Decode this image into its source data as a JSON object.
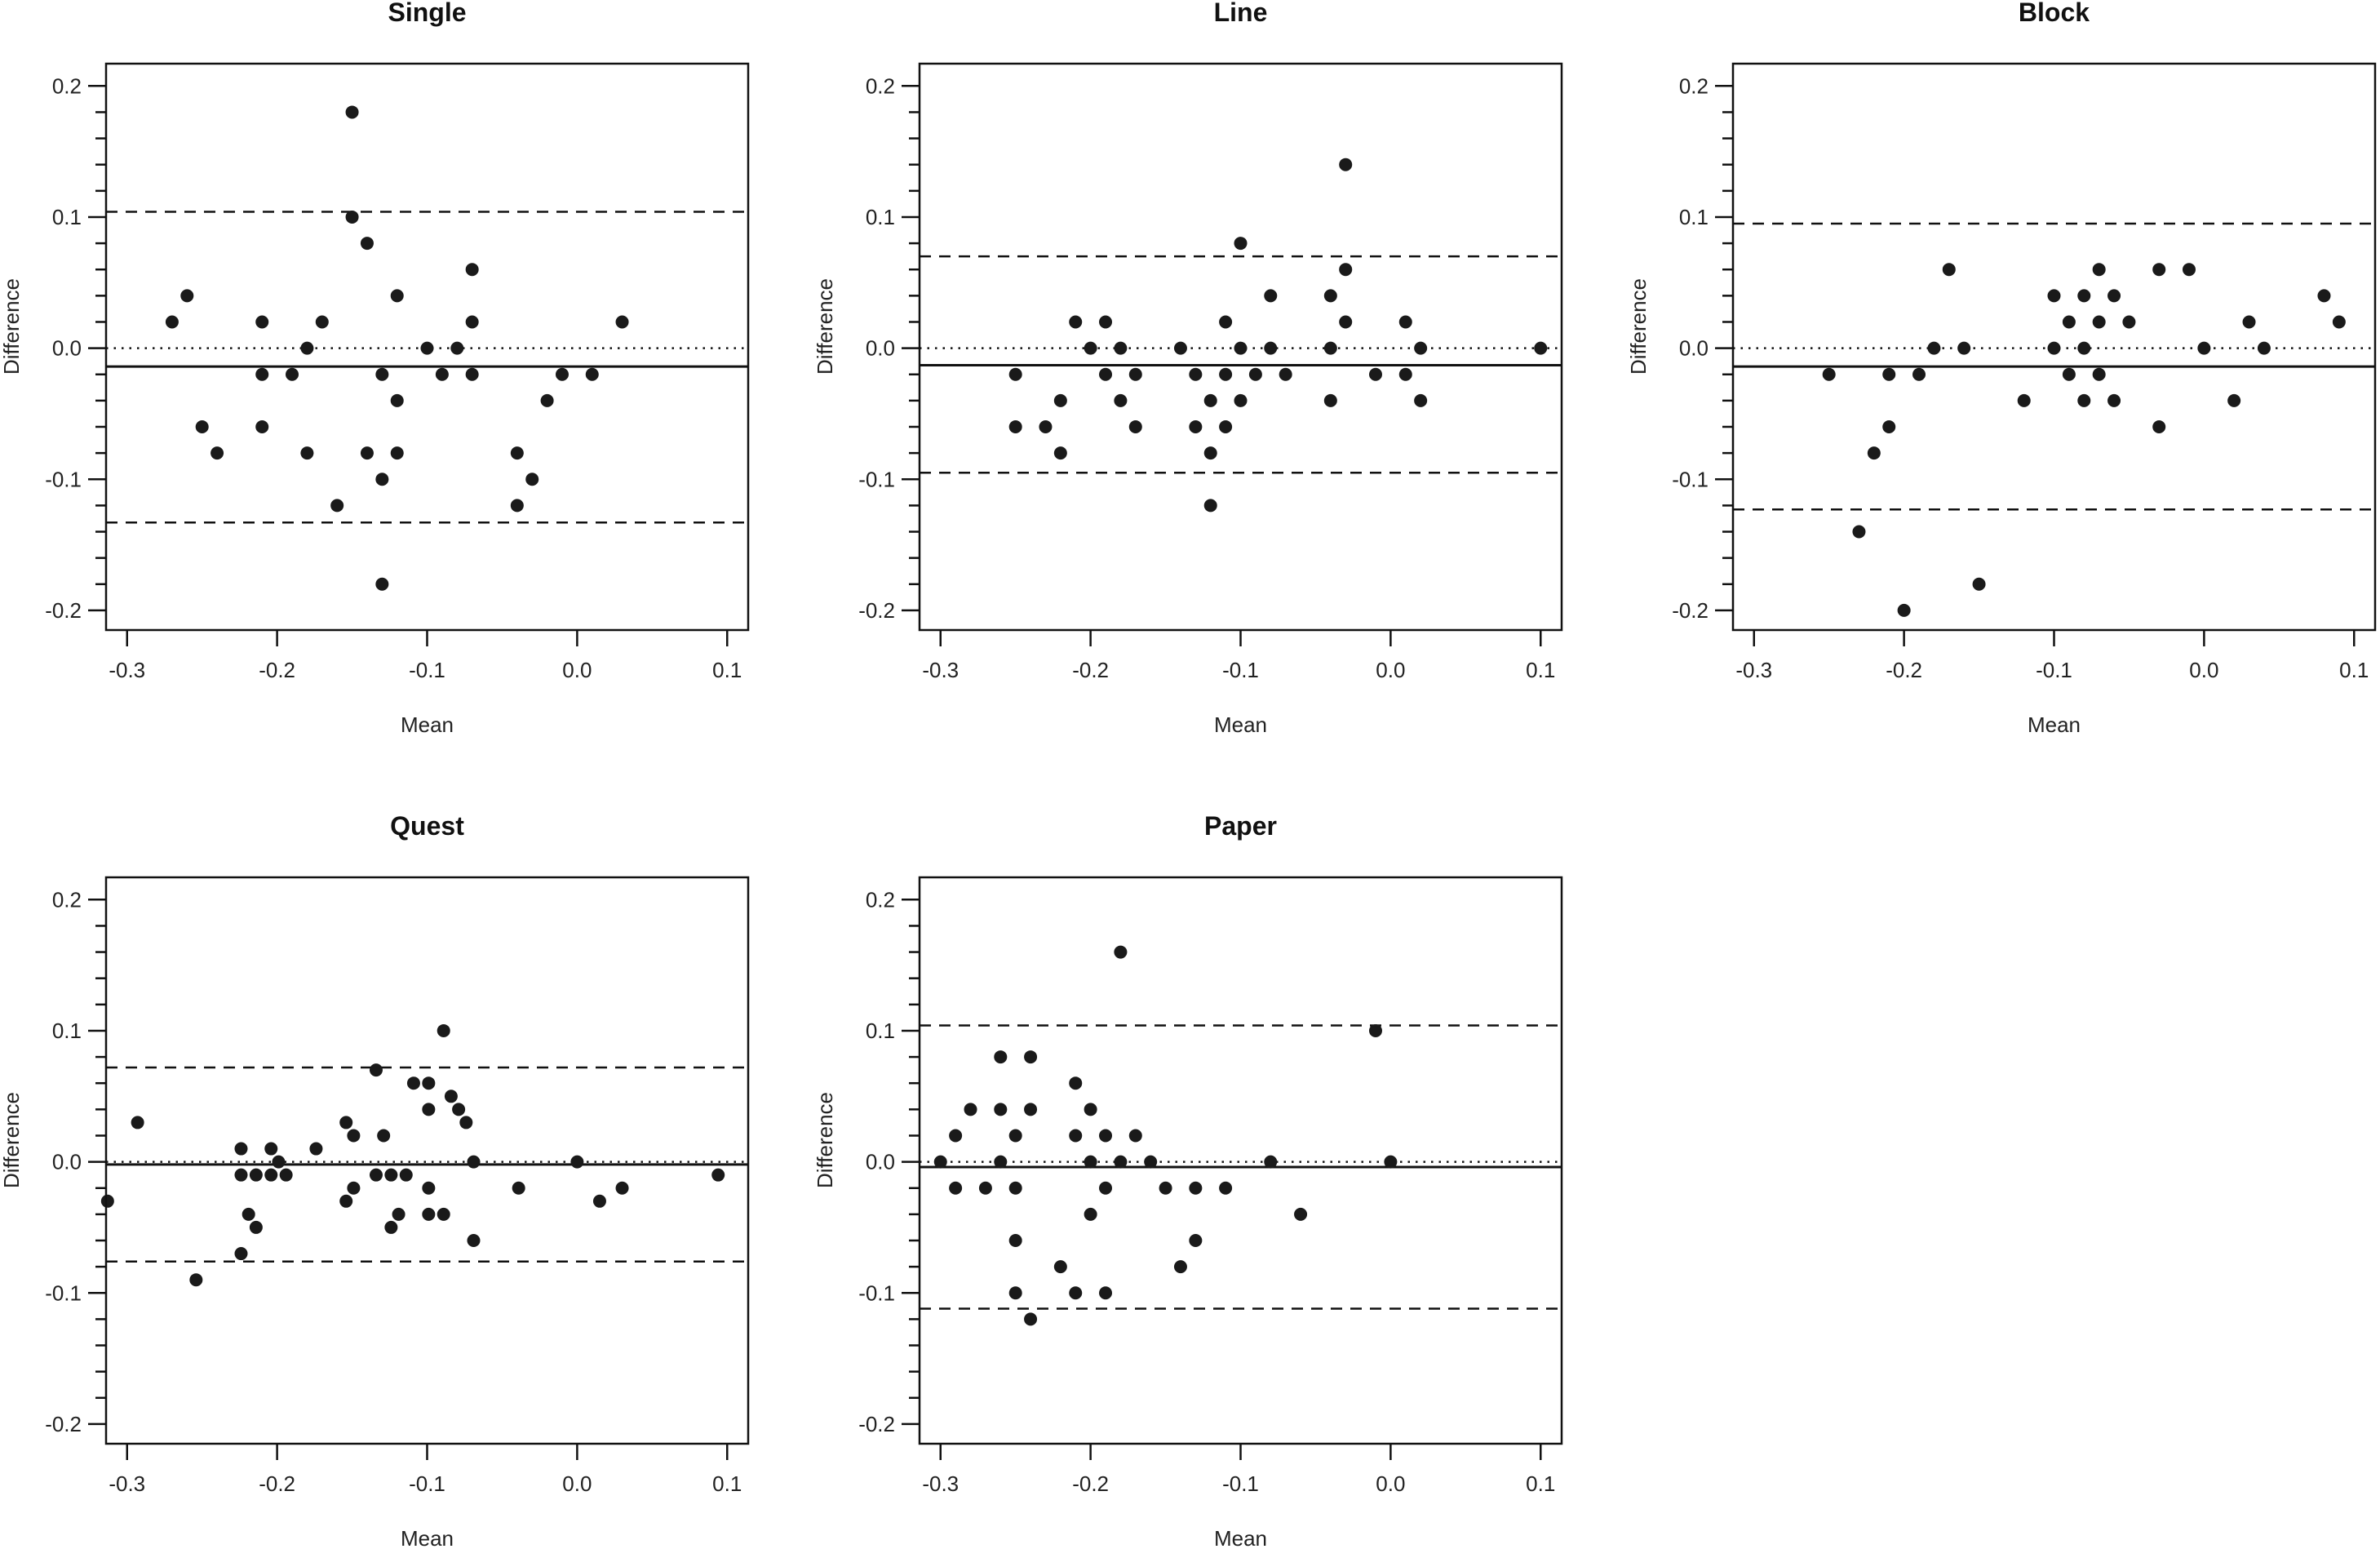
{
  "chart_data": [
    {
      "type": "scatter",
      "title": "Single",
      "xlabel": "Mean",
      "ylabel": "Difference",
      "xlim": [
        -0.314,
        0.114
      ],
      "ylim": [
        -0.215,
        0.217
      ],
      "xticks": [
        -0.3,
        -0.2,
        -0.1,
        0.0,
        0.1
      ],
      "xtick_labels": [
        "-0.3",
        "-0.2",
        "-0.1",
        "0.0",
        "0.1"
      ],
      "yticks": [
        -0.2,
        -0.1,
        0.0,
        0.1,
        0.2
      ],
      "ytick_labels": [
        "-0.2",
        "-0.1",
        "0.0",
        "0.1",
        "0.2"
      ],
      "reference_lines": {
        "upper_limit": 0.104,
        "mean_difference": -0.014,
        "zero": 0.0,
        "lower_limit": -0.133
      },
      "points": [
        [
          -0.27,
          0.02
        ],
        [
          -0.26,
          0.04
        ],
        [
          -0.25,
          -0.06
        ],
        [
          -0.24,
          -0.08
        ],
        [
          -0.21,
          0.02
        ],
        [
          -0.21,
          -0.02
        ],
        [
          -0.21,
          -0.06
        ],
        [
          -0.19,
          -0.02
        ],
        [
          -0.18,
          0
        ],
        [
          -0.18,
          -0.08
        ],
        [
          -0.17,
          0.02
        ],
        [
          -0.16,
          -0.12
        ],
        [
          -0.15,
          0.18
        ],
        [
          -0.15,
          0.1
        ],
        [
          -0.14,
          0.08
        ],
        [
          -0.14,
          -0.08
        ],
        [
          -0.13,
          -0.02
        ],
        [
          -0.13,
          -0.1
        ],
        [
          -0.13,
          -0.18
        ],
        [
          -0.12,
          0.04
        ],
        [
          -0.12,
          -0.04
        ],
        [
          -0.12,
          -0.08
        ],
        [
          -0.1,
          0
        ],
        [
          -0.09,
          -0.02
        ],
        [
          -0.08,
          0
        ],
        [
          -0.07,
          0.06
        ],
        [
          -0.07,
          0.02
        ],
        [
          -0.07,
          -0.02
        ],
        [
          -0.04,
          -0.08
        ],
        [
          -0.04,
          -0.12
        ],
        [
          -0.03,
          -0.1
        ],
        [
          -0.02,
          -0.04
        ],
        [
          -0.01,
          -0.02
        ],
        [
          0.01,
          -0.02
        ],
        [
          0.03,
          0.02
        ]
      ]
    },
    {
      "type": "scatter",
      "title": "Line",
      "xlabel": "Mean",
      "ylabel": "Difference",
      "xlim": [
        -0.314,
        0.114
      ],
      "ylim": [
        -0.215,
        0.217
      ],
      "xticks": [
        -0.3,
        -0.2,
        -0.1,
        0.0,
        0.1
      ],
      "xtick_labels": [
        "-0.3",
        "-0.2",
        "-0.1",
        "0.0",
        "0.1"
      ],
      "yticks": [
        -0.2,
        -0.1,
        0.0,
        0.1,
        0.2
      ],
      "ytick_labels": [
        "-0.2",
        "-0.1",
        "0.0",
        "0.1",
        "0.2"
      ],
      "reference_lines": {
        "upper_limit": 0.07,
        "mean_difference": -0.013,
        "zero": 0.0,
        "lower_limit": -0.095
      },
      "points": [
        [
          -0.25,
          -0.02
        ],
        [
          -0.25,
          -0.06
        ],
        [
          -0.23,
          -0.06
        ],
        [
          -0.22,
          -0.04
        ],
        [
          -0.22,
          -0.08
        ],
        [
          -0.21,
          0.02
        ],
        [
          -0.2,
          0
        ],
        [
          -0.19,
          0.02
        ],
        [
          -0.19,
          -0.02
        ],
        [
          -0.18,
          0
        ],
        [
          -0.18,
          -0.04
        ],
        [
          -0.17,
          -0.02
        ],
        [
          -0.17,
          -0.06
        ],
        [
          -0.14,
          0
        ],
        [
          -0.13,
          -0.02
        ],
        [
          -0.13,
          -0.06
        ],
        [
          -0.12,
          -0.04
        ],
        [
          -0.12,
          -0.08
        ],
        [
          -0.12,
          -0.12
        ],
        [
          -0.11,
          0.02
        ],
        [
          -0.11,
          -0.02
        ],
        [
          -0.11,
          -0.06
        ],
        [
          -0.1,
          0.08
        ],
        [
          -0.1,
          0
        ],
        [
          -0.1,
          -0.04
        ],
        [
          -0.09,
          -0.02
        ],
        [
          -0.08,
          0.04
        ],
        [
          -0.08,
          0
        ],
        [
          -0.07,
          -0.02
        ],
        [
          -0.04,
          0.04
        ],
        [
          -0.04,
          0
        ],
        [
          -0.04,
          -0.04
        ],
        [
          -0.03,
          0.14
        ],
        [
          -0.03,
          0.06
        ],
        [
          -0.03,
          0.02
        ],
        [
          -0.01,
          -0.02
        ],
        [
          0.01,
          0.02
        ],
        [
          0.01,
          -0.02
        ],
        [
          0.02,
          0
        ],
        [
          0.02,
          -0.04
        ],
        [
          0.1,
          0
        ]
      ]
    },
    {
      "type": "scatter",
      "title": "Block",
      "xlabel": "Mean",
      "ylabel": "Difference",
      "xlim": [
        -0.314,
        0.114
      ],
      "ylim": [
        -0.215,
        0.217
      ],
      "xticks": [
        -0.3,
        -0.2,
        -0.1,
        0.0,
        0.1
      ],
      "xtick_labels": [
        "-0.3",
        "-0.2",
        "-0.1",
        "0.0",
        "0.1"
      ],
      "yticks": [
        -0.2,
        -0.1,
        0.0,
        0.1,
        0.2
      ],
      "ytick_labels": [
        "-0.2",
        "-0.1",
        "0.0",
        "0.1",
        "0.2"
      ],
      "reference_lines": {
        "upper_limit": 0.095,
        "mean_difference": -0.014,
        "zero": 0.0,
        "lower_limit": -0.123
      },
      "points": [
        [
          -0.25,
          -0.02
        ],
        [
          -0.23,
          -0.14
        ],
        [
          -0.22,
          -0.08
        ],
        [
          -0.21,
          -0.06
        ],
        [
          -0.21,
          -0.02
        ],
        [
          -0.2,
          -0.2
        ],
        [
          -0.19,
          -0.02
        ],
        [
          -0.18,
          0
        ],
        [
          -0.17,
          0.06
        ],
        [
          -0.16,
          0
        ],
        [
          -0.15,
          -0.18
        ],
        [
          -0.12,
          -0.04
        ],
        [
          -0.1,
          0.04
        ],
        [
          -0.1,
          0
        ],
        [
          -0.09,
          0.02
        ],
        [
          -0.09,
          -0.02
        ],
        [
          -0.08,
          0.04
        ],
        [
          -0.08,
          0
        ],
        [
          -0.08,
          -0.04
        ],
        [
          -0.07,
          0.06
        ],
        [
          -0.07,
          0.02
        ],
        [
          -0.07,
          -0.02
        ],
        [
          -0.06,
          0.04
        ],
        [
          -0.06,
          -0.04
        ],
        [
          -0.05,
          0.02
        ],
        [
          -0.03,
          0.06
        ],
        [
          -0.03,
          -0.06
        ],
        [
          -0.01,
          0.06
        ],
        [
          0,
          0
        ],
        [
          0.02,
          -0.04
        ],
        [
          0.03,
          0.02
        ],
        [
          0.04,
          0
        ],
        [
          0.08,
          0.04
        ],
        [
          0.09,
          0.02
        ]
      ]
    },
    {
      "type": "scatter",
      "title": "Quest",
      "xlabel": "Mean",
      "ylabel": "Difference",
      "xlim": [
        -0.314,
        0.114
      ],
      "ylim": [
        -0.215,
        0.217
      ],
      "xticks": [
        -0.3,
        -0.2,
        -0.1,
        0.0,
        0.1
      ],
      "xtick_labels": [
        "-0.3",
        "-0.2",
        "-0.1",
        "0.0",
        "0.1"
      ],
      "yticks": [
        -0.2,
        -0.1,
        0.0,
        0.1,
        0.2
      ],
      "ytick_labels": [
        "-0.2",
        "-0.1",
        "0.0",
        "0.1",
        "0.2"
      ],
      "reference_lines": {
        "upper_limit": 0.072,
        "mean_difference": -0.002,
        "zero": 0.0,
        "lower_limit": -0.076
      },
      "points": [
        [
          -0.313,
          -0.03
        ],
        [
          -0.293,
          0.03
        ],
        [
          -0.254,
          -0.09
        ],
        [
          -0.224,
          0.01
        ],
        [
          -0.224,
          -0.01
        ],
        [
          -0.224,
          -0.07
        ],
        [
          -0.219,
          -0.04
        ],
        [
          -0.214,
          -0.01
        ],
        [
          -0.214,
          -0.05
        ],
        [
          -0.204,
          0.01
        ],
        [
          -0.204,
          -0.01
        ],
        [
          -0.199,
          0
        ],
        [
          -0.194,
          -0.01
        ],
        [
          -0.174,
          0.01
        ],
        [
          -0.154,
          0.03
        ],
        [
          -0.154,
          -0.03
        ],
        [
          -0.149,
          0.02
        ],
        [
          -0.149,
          -0.02
        ],
        [
          -0.134,
          0.07
        ],
        [
          -0.134,
          -0.01
        ],
        [
          -0.129,
          0.02
        ],
        [
          -0.124,
          -0.01
        ],
        [
          -0.124,
          -0.05
        ],
        [
          -0.119,
          -0.04
        ],
        [
          -0.114,
          -0.01
        ],
        [
          -0.109,
          0.06
        ],
        [
          -0.099,
          0.06
        ],
        [
          -0.099,
          0.04
        ],
        [
          -0.099,
          -0.02
        ],
        [
          -0.099,
          -0.04
        ],
        [
          -0.089,
          0.1
        ],
        [
          -0.089,
          -0.04
        ],
        [
          -0.084,
          0.05
        ],
        [
          -0.079,
          0.04
        ],
        [
          -0.074,
          0.03
        ],
        [
          -0.069,
          0
        ],
        [
          -0.069,
          -0.06
        ],
        [
          -0.039,
          -0.02
        ],
        [
          0,
          0
        ],
        [
          0.015,
          -0.03
        ],
        [
          0.03,
          -0.02
        ],
        [
          0.094,
          -0.01
        ]
      ]
    },
    {
      "type": "scatter",
      "title": "Paper",
      "xlabel": "Mean",
      "ylabel": "Difference",
      "xlim": [
        -0.314,
        0.114
      ],
      "ylim": [
        -0.215,
        0.217
      ],
      "xticks": [
        -0.3,
        -0.2,
        -0.1,
        0.0,
        0.1
      ],
      "xtick_labels": [
        "-0.3",
        "-0.2",
        "-0.1",
        "0.0",
        "0.1"
      ],
      "yticks": [
        -0.2,
        -0.1,
        0.0,
        0.1,
        0.2
      ],
      "ytick_labels": [
        "-0.2",
        "-0.1",
        "0.0",
        "0.1",
        "0.2"
      ],
      "reference_lines": {
        "upper_limit": 0.104,
        "mean_difference": -0.004,
        "zero": 0.0,
        "lower_limit": -0.112
      },
      "points": [
        [
          -0.3,
          0
        ],
        [
          -0.29,
          0.02
        ],
        [
          -0.29,
          -0.02
        ],
        [
          -0.28,
          0.04
        ],
        [
          -0.27,
          -0.02
        ],
        [
          -0.26,
          0.08
        ],
        [
          -0.26,
          0.04
        ],
        [
          -0.26,
          0
        ],
        [
          -0.25,
          0.02
        ],
        [
          -0.25,
          -0.02
        ],
        [
          -0.25,
          -0.06
        ],
        [
          -0.25,
          -0.1
        ],
        [
          -0.24,
          0.08
        ],
        [
          -0.24,
          0.04
        ],
        [
          -0.24,
          -0.12
        ],
        [
          -0.22,
          -0.08
        ],
        [
          -0.21,
          0.06
        ],
        [
          -0.21,
          0.02
        ],
        [
          -0.21,
          -0.1
        ],
        [
          -0.2,
          0.04
        ],
        [
          -0.2,
          0
        ],
        [
          -0.2,
          -0.04
        ],
        [
          -0.19,
          0.02
        ],
        [
          -0.19,
          -0.02
        ],
        [
          -0.19,
          -0.1
        ],
        [
          -0.18,
          0.16
        ],
        [
          -0.18,
          0
        ],
        [
          -0.17,
          0.02
        ],
        [
          -0.16,
          0
        ],
        [
          -0.15,
          -0.02
        ],
        [
          -0.14,
          -0.08
        ],
        [
          -0.13,
          -0.02
        ],
        [
          -0.13,
          -0.06
        ],
        [
          -0.11,
          -0.02
        ],
        [
          -0.08,
          0
        ],
        [
          -0.06,
          -0.04
        ],
        [
          -0.01,
          0.1
        ],
        [
          0,
          0
        ]
      ]
    }
  ],
  "colors": {
    "points": "#1a1a1a",
    "lines": "#111111"
  }
}
